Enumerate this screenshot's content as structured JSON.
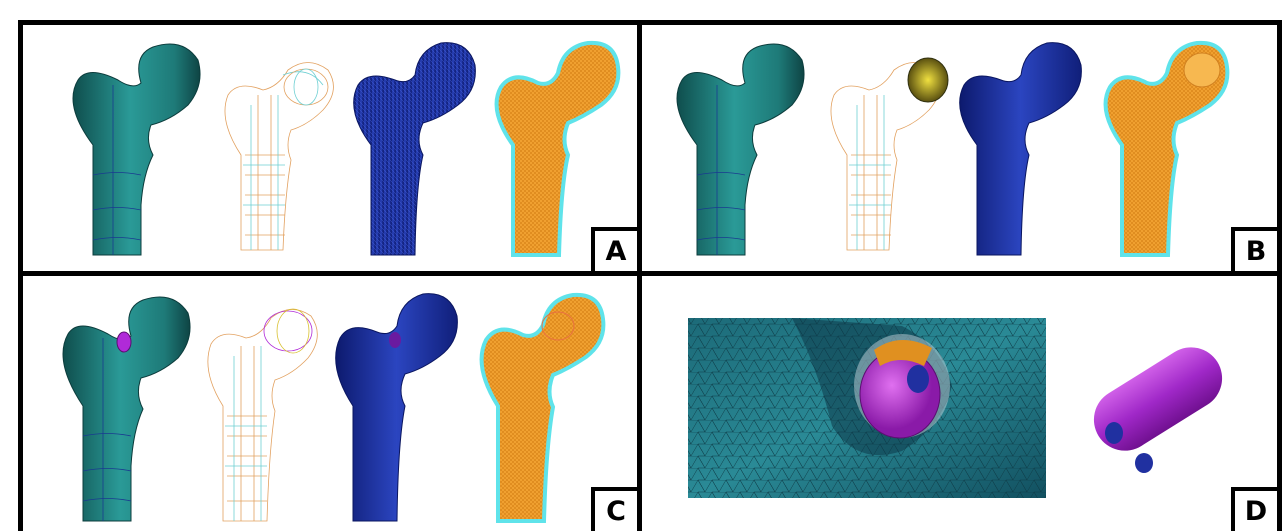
{
  "panels": [
    {
      "label": "A"
    },
    {
      "label": "B"
    },
    {
      "label": "C"
    },
    {
      "label": "D"
    }
  ],
  "colors": {
    "teal_solid": "#1f7f7d",
    "wire_orange": "#e2a160",
    "wire_cyan": "#6fd0d3",
    "mesh_blue": "#1a2f9a",
    "mesh_orange": "#f0a030",
    "mesh_outline": "#5fe3ea",
    "screw_purple": "#b02ad8",
    "implant_gold": "#c8b020"
  }
}
